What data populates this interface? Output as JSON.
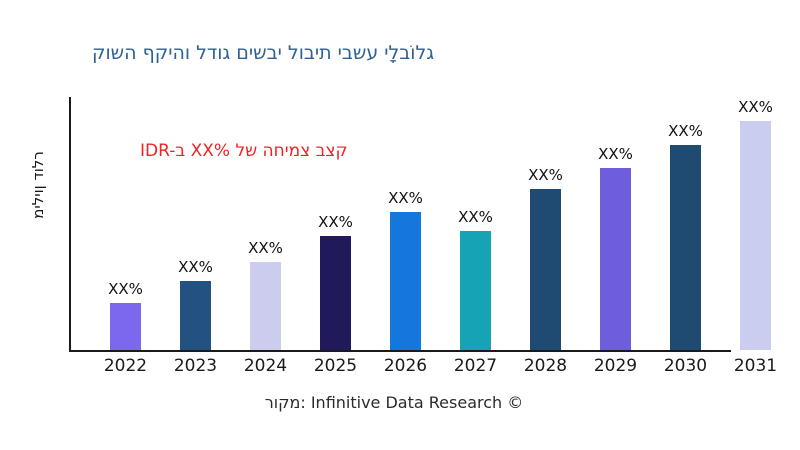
{
  "title": {
    "text": "קושה ףקיהו לדוג םישבי לובית יבשע ילָבוֹלג",
    "color": "#2E6293"
  },
  "annotation": {
    "text": "IDR-ב XX% לש החימצ בצק",
    "color": "#EE2424"
  },
  "source_note": "רוקמ: Infinitive Data Research ©",
  "axes": {
    "y_label": "מיליון דולר",
    "spine_color": "#1a1a1a",
    "y_tick_labels_shown": false
  },
  "chart_data": {
    "type": "bar",
    "title": "קושה ףקיהו לדוג םישבי לובית יבשע ילָבוֹלג",
    "categories": [
      "2022",
      "2023",
      "2024",
      "2025",
      "2026",
      "2027",
      "2028",
      "2029",
      "2030",
      "2031"
    ],
    "values_relative": [
      47,
      69,
      88,
      114,
      138,
      119,
      161,
      182,
      205,
      229
    ],
    "bar_value_labels": [
      "XX%",
      "XX%",
      "XX%",
      "XX%",
      "XX%",
      "XX%",
      "XX%",
      "XX%",
      "XX%",
      "XX%"
    ],
    "bar_colors": [
      "#7B68EE",
      "#235282",
      "#CBCCEE",
      "#211A5A",
      "#1577DB",
      "#16A3B5",
      "#1F4A72",
      "#6E5EDE",
      "#1F4A72",
      "#CBCDF0"
    ],
    "xlabel": "",
    "ylabel": "מיליון דולר",
    "ylim": [
      0,
      255
    ],
    "grid": false,
    "legend": null,
    "annotation": "IDR-ב XX% לש החימצ בצק"
  }
}
